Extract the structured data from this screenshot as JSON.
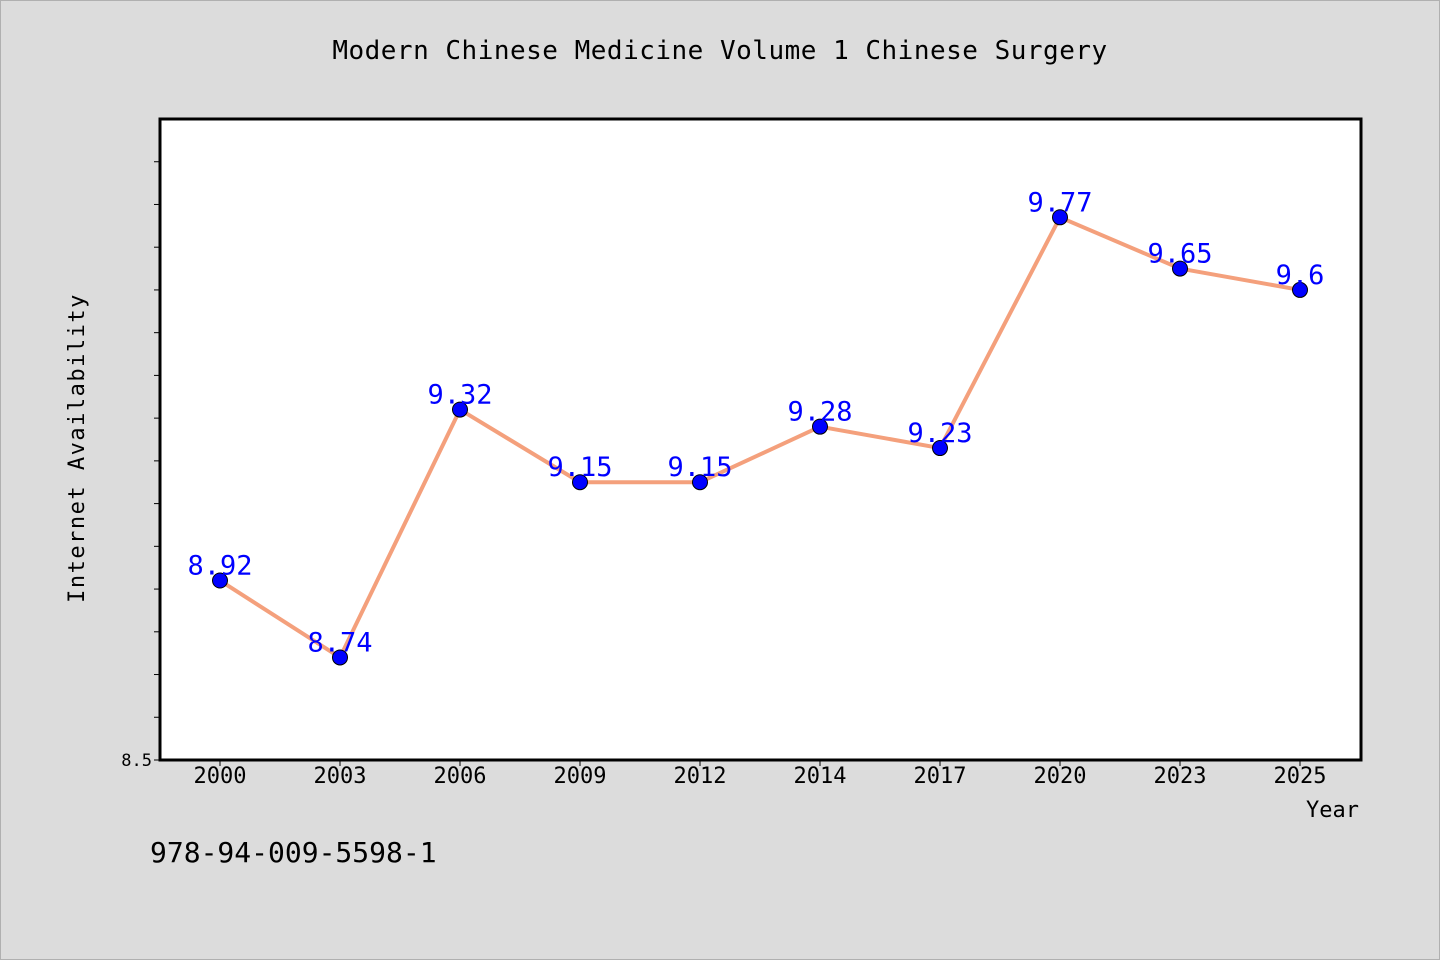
{
  "title": "Modern Chinese Medicine Volume 1 Chinese Surgery",
  "isbn": "978-94-009-5598-1",
  "chart_data": {
    "type": "line",
    "title": "Modern Chinese Medicine Volume 1 Chinese Surgery",
    "xlabel": "Year",
    "ylabel": "Internet Availability",
    "categories": [
      "2000",
      "2003",
      "2006",
      "2009",
      "2012",
      "2014",
      "2017",
      "2020",
      "2023",
      "2025"
    ],
    "series": [
      {
        "values": [
          8.92,
          8.74,
          9.32,
          9.15,
          9.15,
          9.28,
          9.23,
          9.77,
          9.65,
          9.6
        ],
        "labels": [
          "8.92",
          "8.74",
          "9.32",
          "9.15",
          "9.15",
          "9.28",
          "9.23",
          "9.77",
          "9.65",
          "9.6"
        ],
        "line_color": "#f4a07c",
        "marker_color": "#0000ff"
      }
    ],
    "ylim": [
      8.5,
      10.0
    ],
    "y_tick_labels": [
      "8.5"
    ],
    "grid": false,
    "legend": "none",
    "data_label_color": "#0000ff"
  }
}
